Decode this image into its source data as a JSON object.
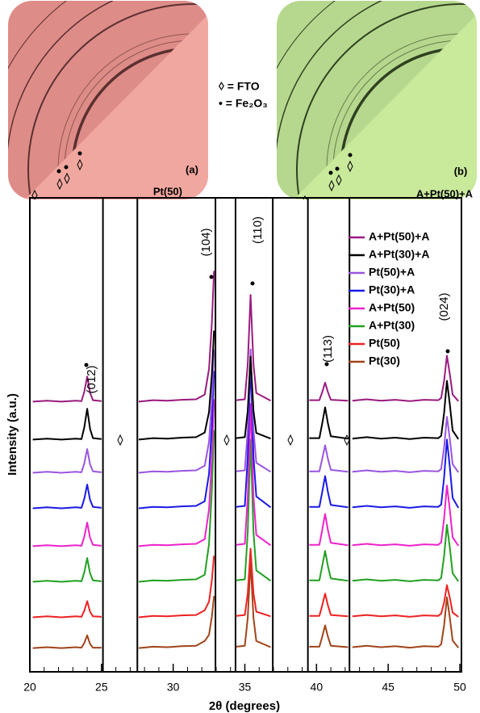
{
  "figure": {
    "panels": [
      {
        "label": "(a)",
        "sample": "Pt(50)"
      },
      {
        "label": "(b)",
        "sample": "A+Pt(50)+A"
      }
    ],
    "key": [
      "◊ = FTO",
      "• = Fe₂O₃"
    ]
  },
  "chart_data": {
    "type": "line",
    "x_label": "2θ (degrees)",
    "y_label": "Intensity (a.u.)",
    "xlim": [
      20,
      50
    ],
    "xticks": [
      20,
      25,
      30,
      35,
      40,
      45,
      50
    ],
    "xminorticks": [
      21,
      22,
      23,
      24,
      26,
      27,
      28,
      29,
      31,
      32,
      33,
      34,
      36,
      37,
      38,
      39,
      41,
      42,
      43,
      44,
      46,
      47,
      48,
      49
    ],
    "ylim": [
      0,
      100
    ],
    "legend": "upper right",
    "segment_edges": [
      25.1,
      27.5,
      32.95,
      34.35,
      36.95,
      39.4,
      42.3
    ],
    "peak_labels": [
      "(012)",
      "(104)",
      "(110)",
      "(113)",
      "(024)"
    ],
    "x": [
      20.2,
      21.2,
      22.2,
      23.2,
      23.6,
      23.8,
      24.0,
      24.2,
      24.4,
      25.0,
      26.3,
      27.6,
      28.6,
      29.6,
      30.6,
      31.6,
      32.2,
      32.5,
      32.7,
      32.85,
      33.6,
      34.4,
      35.0,
      35.2,
      35.4,
      35.6,
      35.8,
      36.8,
      38.2,
      39.5,
      40.2,
      40.4,
      40.6,
      40.8,
      41.0,
      42.2,
      42.35,
      42.5,
      43.5,
      44.5,
      45.5,
      46.5,
      47.5,
      48.5,
      48.7,
      48.9,
      49.1,
      49.3,
      49.5,
      49.9
    ],
    "series": [
      {
        "name": "A+Pt(50)+A",
        "color": "#9a1a80",
        "values": [
          57,
          57.2,
          57,
          57.2,
          57.1,
          59.1,
          62.3,
          58.9,
          57.3,
          57.1,
          null,
          57,
          57.3,
          57.2,
          57.4,
          57.5,
          58.5,
          63.9,
          73.6,
          84.6,
          null,
          57.3,
          57.5,
          64.9,
          79.5,
          64.9,
          58.8,
          57.2,
          null,
          57.3,
          57.3,
          59,
          61,
          59,
          57.4,
          57.2,
          null,
          57.2,
          57.5,
          57.2,
          57.4,
          57.1,
          57.4,
          57.3,
          57.8,
          61.4,
          66.7,
          62.8,
          58.5,
          57.1
        ]
      },
      {
        "name": "A+Pt(30)+A",
        "color": "#000000",
        "values": [
          49,
          49.2,
          49,
          49.2,
          49.1,
          51.6,
          55.5,
          51.3,
          49.3,
          49.1,
          null,
          49,
          49.3,
          49.2,
          49.4,
          49.5,
          50.5,
          54.8,
          62.8,
          72,
          null,
          49.3,
          49.5,
          55.1,
          66.5,
          55.1,
          50.4,
          49.2,
          null,
          49.3,
          49.3,
          52.4,
          55.8,
          52.4,
          49.7,
          49.2,
          null,
          49.2,
          49.5,
          49.2,
          49.4,
          49.1,
          49.4,
          49.3,
          49.8,
          54.6,
          61.4,
          56.4,
          50.9,
          49.1
        ]
      },
      {
        "name": "Pt(50)+A",
        "color": "#9a55e0",
        "values": [
          42,
          42.2,
          42,
          42.2,
          42.1,
          44,
          47,
          43.8,
          42.3,
          42.1,
          null,
          42,
          42.3,
          42.2,
          42.4,
          42.5,
          43.5,
          48.5,
          57.6,
          68,
          null,
          42.3,
          42.5,
          51.1,
          68,
          51.1,
          44.1,
          42.2,
          null,
          42.3,
          42.3,
          44.9,
          47.8,
          44.9,
          42.6,
          42.2,
          null,
          42.2,
          42.5,
          42.2,
          42.4,
          42.1,
          42.4,
          42.3,
          42.8,
          47.3,
          53.8,
          49.1,
          43.8,
          42.1
        ]
      },
      {
        "name": "Pt(30)+A",
        "color": "#1a1ae6",
        "values": [
          34.5,
          34.7,
          34.5,
          34.7,
          34.6,
          36.5,
          39.5,
          36.3,
          34.8,
          34.6,
          null,
          34.5,
          34.8,
          34.7,
          34.9,
          35,
          36,
          41.8,
          51.9,
          63.5,
          null,
          34.8,
          35,
          45.4,
          65.5,
          45.4,
          37,
          34.7,
          null,
          34.8,
          34.8,
          37.9,
          41.3,
          37.9,
          35.2,
          34.7,
          null,
          34.7,
          35,
          34.7,
          34.9,
          34.6,
          34.9,
          34.8,
          35.3,
          41,
          49,
          43.2,
          36.7,
          34.6
        ]
      },
      {
        "name": "A+Pt(50)",
        "color": "#ee22cc",
        "values": [
          26.5,
          26.7,
          26.5,
          26.7,
          26.6,
          28.5,
          31.5,
          28.3,
          26.8,
          26.6,
          null,
          26.5,
          26.8,
          26.7,
          26.9,
          27,
          28,
          34.3,
          45.1,
          57.5,
          null,
          26.8,
          27,
          37,
          56.5,
          37,
          28.9,
          26.7,
          null,
          26.8,
          26.8,
          29.9,
          33.3,
          29.9,
          27.2,
          26.7,
          null,
          26.7,
          27,
          26.7,
          26.9,
          26.6,
          26.9,
          26.8,
          27.3,
          32.3,
          39.3,
          34.2,
          28.4,
          26.6
        ]
      },
      {
        "name": "A+Pt(30)",
        "color": "#22a022",
        "values": [
          19,
          19.2,
          19,
          19.2,
          19.1,
          21,
          24,
          20.8,
          19.3,
          19.1,
          null,
          19,
          19.3,
          19.2,
          19.4,
          19.5,
          20.5,
          27,
          38.2,
          51,
          null,
          19.3,
          19.5,
          29.5,
          49,
          29.5,
          21.4,
          19.2,
          null,
          19.3,
          19.3,
          22.3,
          25.5,
          22.3,
          19.7,
          19.2,
          null,
          19.2,
          19.5,
          19.2,
          19.4,
          19.1,
          19.4,
          19.3,
          19.8,
          24.4,
          31,
          26.2,
          20.8,
          19.1
        ]
      },
      {
        "name": "Pt(50)",
        "color": "#ee2222",
        "values": [
          11.5,
          11.7,
          11.5,
          11.7,
          11.6,
          12.9,
          14.9,
          12.7,
          11.7,
          11.6,
          null,
          11.5,
          11.8,
          11.7,
          11.9,
          12,
          13,
          14.8,
          19.3,
          24.5,
          null,
          11.8,
          12,
          16.6,
          26,
          16.6,
          12.7,
          11.7,
          null,
          11.8,
          11.8,
          14,
          16.5,
          14,
          12,
          11.7,
          null,
          11.7,
          12,
          11.7,
          11.9,
          11.6,
          11.9,
          11.8,
          12.3,
          14.6,
          18.3,
          15.6,
          12.5,
          11.6
        ]
      },
      {
        "name": "Pt(30)",
        "color": "#a0441a",
        "values": [
          5,
          5.2,
          5,
          5.2,
          5.1,
          6.1,
          7.7,
          5.9,
          5.1,
          5.1,
          null,
          5,
          5.3,
          5.2,
          5.4,
          5.5,
          6.5,
          7.8,
          11.6,
          16,
          null,
          5.3,
          5.5,
          11.4,
          23.4,
          11.4,
          6.5,
          5.2,
          null,
          5.3,
          5.3,
          7.4,
          9.8,
          7.4,
          5.5,
          5.2,
          null,
          5.2,
          5.5,
          5.2,
          5.4,
          5.1,
          5.4,
          5.3,
          5.8,
          9.8,
          15.7,
          11.4,
          6.6,
          5.1
        ]
      }
    ]
  }
}
